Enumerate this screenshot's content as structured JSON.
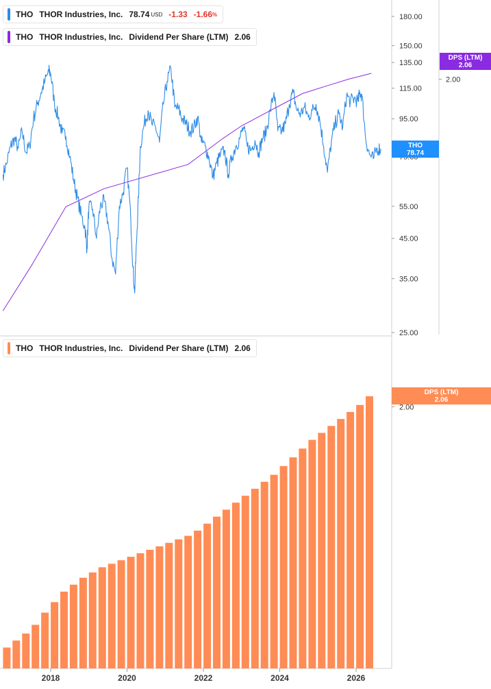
{
  "legends": {
    "price": {
      "ticker": "THO",
      "company": "THOR Industries, Inc.",
      "price": "78.74",
      "currency": "USD",
      "change": "-1.33",
      "change_pct": "-1.66",
      "pct_sign": "%",
      "color": "#2e8be6"
    },
    "dps_top": {
      "ticker": "THO",
      "company": "THOR Industries, Inc.",
      "metric": "Dividend Per Share (LTM)",
      "value": "2.06",
      "color": "#8a2be2"
    },
    "dps_bottom": {
      "ticker": "THO",
      "company": "THOR Industries, Inc.",
      "metric": "Dividend Per Share (LTM)",
      "value": "2.06",
      "color": "#ff8c55"
    }
  },
  "badges": {
    "price": {
      "line1": "THO",
      "line2": "78.74",
      "color": "#1e90ff"
    },
    "dps_top": {
      "line1": "DPS (LTM)",
      "line2": "2.06",
      "color": "#8a2be2"
    },
    "dps_bottom": {
      "line1": "DPS (LTM)",
      "line2": "2.06",
      "color": "#ff8c55"
    }
  },
  "chart_data": [
    {
      "type": "line",
      "scale": "log",
      "ylim": [
        25,
        190
      ],
      "y_ticks": [
        "180.00",
        "150.00",
        "135.00",
        "115.00",
        "95.00",
        "75.00",
        "55.00",
        "45.00",
        "35.00",
        "25.00"
      ],
      "dps_axis_tick": "2.00",
      "series": [
        {
          "name": "THO",
          "color": "#2e8be6",
          "x": [
            2016.75,
            2016.85,
            2016.95,
            2017.05,
            2017.15,
            2017.25,
            2017.35,
            2017.45,
            2017.55,
            2017.65,
            2017.75,
            2017.85,
            2017.95,
            2018.0,
            2018.1,
            2018.2,
            2018.3,
            2018.4,
            2018.5,
            2018.6,
            2018.7,
            2018.8,
            2018.9,
            2018.95,
            2019.0,
            2019.1,
            2019.2,
            2019.3,
            2019.4,
            2019.5,
            2019.6,
            2019.7,
            2019.8,
            2019.9,
            2020.0,
            2020.1,
            2020.15,
            2020.2,
            2020.25,
            2020.3,
            2020.35,
            2020.45,
            2020.55,
            2020.65,
            2020.75,
            2020.85,
            2020.95,
            2021.05,
            2021.15,
            2021.25,
            2021.35,
            2021.45,
            2021.55,
            2021.65,
            2021.75,
            2021.85,
            2021.95,
            2022.05,
            2022.15,
            2022.25,
            2022.35,
            2022.45,
            2022.55,
            2022.65,
            2022.75,
            2022.85,
            2022.95,
            2023.05,
            2023.15,
            2023.25,
            2023.35,
            2023.45,
            2023.55,
            2023.65,
            2023.75,
            2023.85,
            2023.95,
            2024.05,
            2024.15,
            2024.25,
            2024.35,
            2024.45,
            2024.55,
            2024.65,
            2024.75,
            2024.85,
            2024.95,
            2025.05,
            2025.15,
            2025.25,
            2025.35,
            2025.45,
            2025.55,
            2025.65,
            2025.75,
            2025.85,
            2025.95,
            2026.05,
            2026.1,
            2026.15,
            2026.25,
            2026.35,
            2026.45,
            2026.55,
            2026.65
          ],
          "y": [
            67,
            72,
            80,
            84,
            79,
            88,
            77,
            80,
            95,
            104,
            112,
            120,
            128,
            126,
            104,
            96,
            87,
            85,
            75,
            65,
            58,
            52,
            48,
            42,
            55,
            54,
            45,
            55,
            57,
            50,
            40,
            36,
            55,
            60,
            70,
            50,
            38,
            32,
            44,
            58,
            80,
            92,
            100,
            92,
            90,
            82,
            104,
            120,
            130,
            102,
            101,
            95,
            92,
            88,
            90,
            96,
            82,
            80,
            74,
            66,
            72,
            76,
            78,
            67,
            75,
            80,
            84,
            90,
            80,
            78,
            83,
            77,
            84,
            88,
            100,
            112,
            88,
            88,
            92,
            104,
            112,
            100,
            98,
            102,
            96,
            100,
            104,
            94,
            80,
            68,
            82,
            92,
            98,
            90,
            110,
            106,
            108,
            106,
            112,
            110,
            84,
            76,
            74,
            79,
            78.74
          ]
        },
        {
          "name": "DPS (LTM)",
          "axis": "secondary",
          "color": "#8a2be2",
          "x": [
            2016.75,
            2017.5,
            2018.4,
            2019.4,
            2021.6,
            2022.5,
            2023.0,
            2024.0,
            2024.6,
            2025.2,
            2025.8,
            2026.4
          ],
          "y": [
            0.62,
            0.78,
            1.05,
            1.15,
            1.3,
            1.48,
            1.58,
            1.75,
            1.86,
            1.93,
            2.0,
            2.06
          ]
        }
      ]
    },
    {
      "type": "bar",
      "series": [
        {
          "name": "Dividend Per Share (LTM)",
          "color": "#ff8c55",
          "x": [
            2016.85,
            2017.1,
            2017.35,
            2017.6,
            2017.85,
            2018.1,
            2018.35,
            2018.6,
            2018.85,
            2019.1,
            2019.35,
            2019.6,
            2019.85,
            2020.1,
            2020.35,
            2020.6,
            2020.85,
            2021.1,
            2021.35,
            2021.6,
            2021.85,
            2022.1,
            2022.35,
            2022.6,
            2022.85,
            2023.1,
            2023.35,
            2023.6,
            2023.85,
            2024.1,
            2024.35,
            2024.6,
            2024.85,
            2025.1,
            2025.35,
            2025.6,
            2025.85,
            2026.1,
            2026.35
          ],
          "y": [
            0.62,
            0.66,
            0.7,
            0.75,
            0.82,
            0.88,
            0.94,
            0.98,
            1.02,
            1.05,
            1.08,
            1.1,
            1.12,
            1.14,
            1.16,
            1.18,
            1.2,
            1.22,
            1.24,
            1.26,
            1.29,
            1.33,
            1.37,
            1.41,
            1.45,
            1.49,
            1.53,
            1.57,
            1.61,
            1.66,
            1.71,
            1.76,
            1.81,
            1.85,
            1.89,
            1.93,
            1.97,
            2.01,
            2.06
          ]
        }
      ],
      "y_ticks": [
        "2.00"
      ],
      "x_ticks": [
        "2018",
        "2020",
        "2022",
        "2024",
        "2026"
      ],
      "x_tick_values": [
        2018,
        2020,
        2022,
        2024,
        2026
      ]
    }
  ]
}
